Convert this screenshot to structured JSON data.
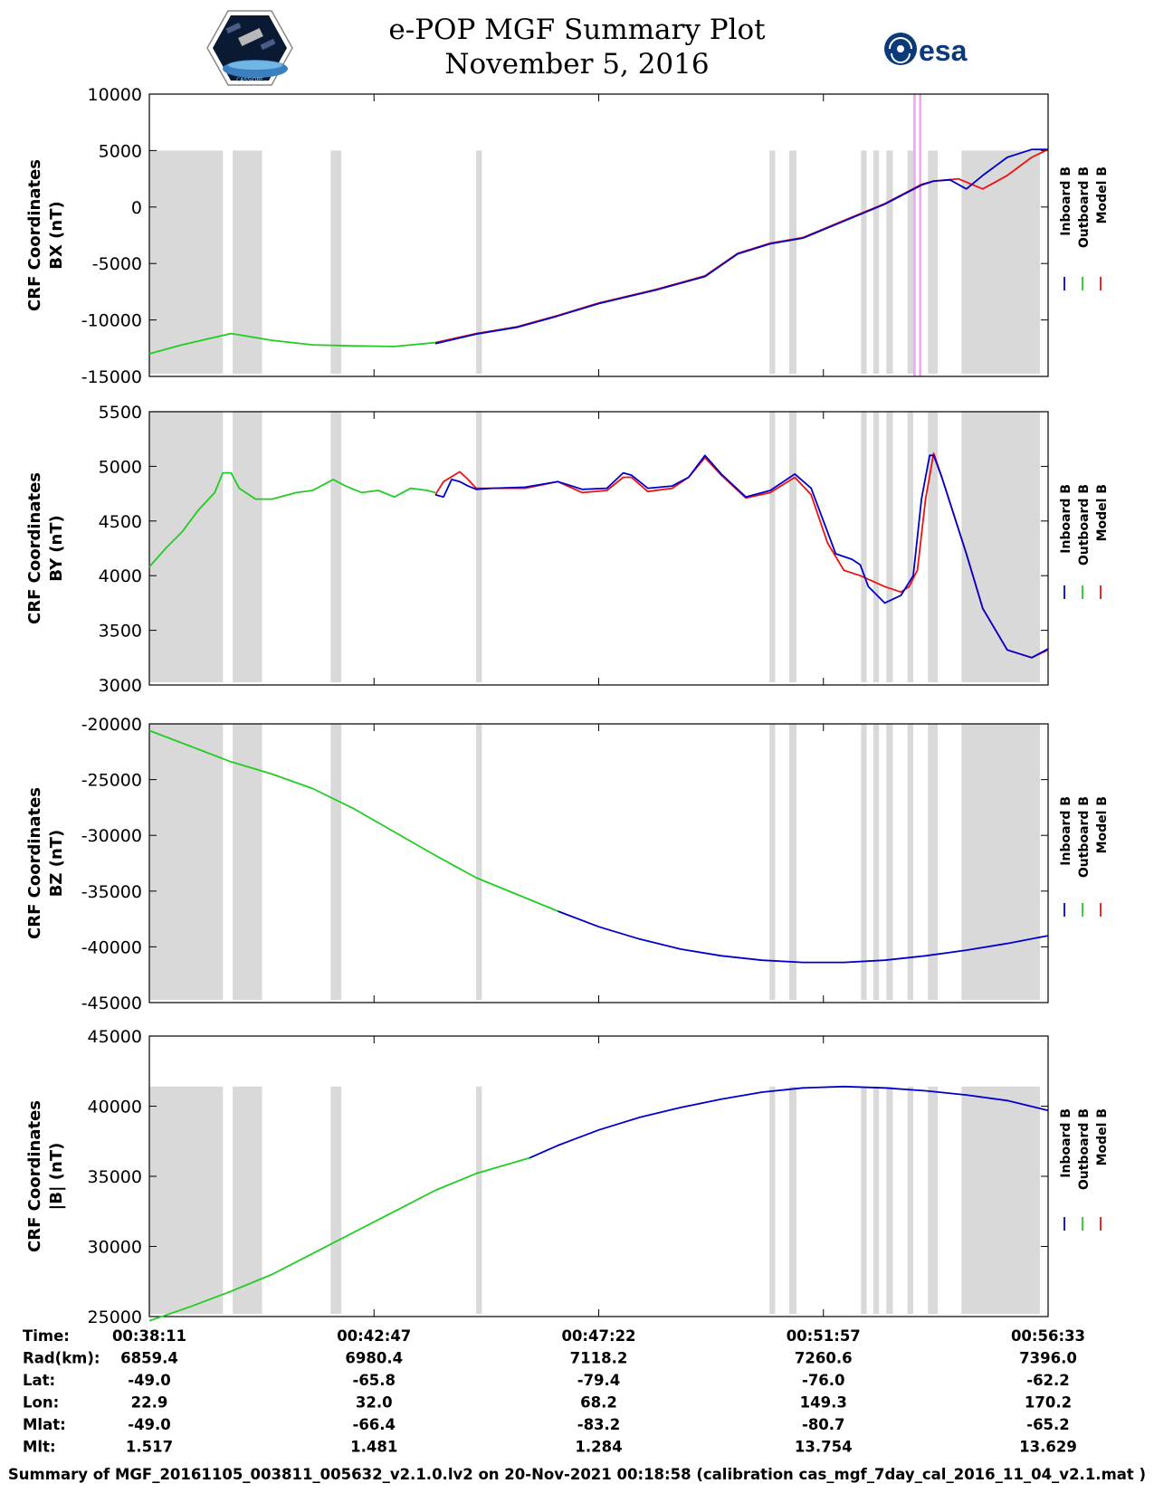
{
  "header": {
    "title": "e-POP MGF Summary Plot",
    "date": "November 5, 2016",
    "logo_left_label": "CASSIOPE",
    "logo_right_label": "esa"
  },
  "colors": {
    "inboard": "#0000cc",
    "outboard": "#22cc22",
    "model": "#ee1111",
    "shade": "#d9d9d9",
    "highlight": "#f0a8f0"
  },
  "chart_data": [
    {
      "type": "line",
      "ylabel_line1": "CRF Coordinates",
      "ylabel_line2": "BX (nT)",
      "ylim": [
        -15000,
        10000
      ],
      "yticks": [
        10000,
        5000,
        0,
        -5000,
        -10000,
        -15000
      ],
      "tick_labels": [
        "10000",
        "5000",
        "0",
        "-5000",
        "-10000",
        "-15000"
      ],
      "legend": [
        "Inboard B",
        "Outboard B",
        "Model B"
      ],
      "shade_top": 5000,
      "series": [
        {
          "name": "Outboard B",
          "x": [
            0,
            40,
            100,
            150,
            200,
            250,
            300,
            350
          ],
          "y": [
            -13000,
            -12200,
            -11200,
            -11800,
            -12200,
            -12300,
            -12350,
            -12000
          ]
        },
        {
          "name": "Model B",
          "x": [
            350,
            400,
            450,
            500,
            550,
            620,
            680,
            720,
            760,
            800,
            860,
            900,
            945,
            960,
            990,
            1020,
            1050,
            1080,
            1100
          ],
          "y": [
            -12000,
            -11200,
            -10600,
            -9600,
            -8500,
            -7300,
            -6100,
            -4100,
            -3200,
            -2700,
            -900,
            300,
            2000,
            2300,
            2500,
            1600,
            2800,
            4400,
            5100
          ]
        },
        {
          "name": "Inboard B",
          "x": [
            350,
            400,
            450,
            500,
            550,
            620,
            680,
            720,
            760,
            800,
            860,
            900,
            945,
            960,
            980,
            990,
            1000,
            1020,
            1050,
            1080,
            1100
          ],
          "y": [
            -12100,
            -11250,
            -10650,
            -9650,
            -8550,
            -7350,
            -6150,
            -4150,
            -3250,
            -2750,
            -950,
            250,
            1950,
            2300,
            2400,
            2000,
            1600,
            2800,
            4400,
            5100,
            5100
          ]
        }
      ],
      "highlights": [
        [
          935,
          938
        ],
        [
          942,
          945
        ]
      ]
    },
    {
      "type": "line",
      "ylabel_line1": "CRF Coordinates",
      "ylabel_line2": "BY (nT)",
      "ylim": [
        3000,
        5500
      ],
      "yticks": [
        5500,
        5000,
        4500,
        4000,
        3500,
        3000
      ],
      "tick_labels": [
        "5500",
        "5000",
        "4500",
        "4000",
        "3500",
        "3000"
      ],
      "legend": [
        "Inboard B",
        "Outboard B",
        "Model B"
      ],
      "shade_top": 5500,
      "series": [
        {
          "name": "Outboard B",
          "x": [
            0,
            20,
            40,
            60,
            80,
            90,
            100,
            110,
            130,
            150,
            180,
            200,
            225,
            240,
            260,
            280,
            300,
            320,
            340,
            350
          ],
          "y": [
            4080,
            4250,
            4400,
            4600,
            4760,
            4940,
            4940,
            4800,
            4700,
            4700,
            4760,
            4780,
            4880,
            4820,
            4760,
            4780,
            4720,
            4800,
            4780,
            4760
          ]
        },
        {
          "name": "Model B",
          "x": [
            350,
            360,
            380,
            390,
            400,
            420,
            460,
            500,
            530,
            560,
            580,
            590,
            610,
            640,
            660,
            680,
            700,
            730,
            760,
            790,
            810,
            830,
            850,
            870,
            900,
            920,
            930,
            940,
            950,
            960,
            970,
            1000,
            1020,
            1050,
            1080,
            1100
          ],
          "y": [
            4740,
            4860,
            4950,
            4880,
            4800,
            4800,
            4800,
            4860,
            4760,
            4780,
            4900,
            4900,
            4770,
            4800,
            4900,
            5080,
            4920,
            4710,
            4760,
            4900,
            4740,
            4300,
            4050,
            4000,
            3900,
            3850,
            3900,
            4050,
            4700,
            5120,
            4900,
            4200,
            3700,
            3320,
            3250,
            3320
          ]
        },
        {
          "name": "Inboard B",
          "x": [
            350,
            360,
            370,
            380,
            390,
            400,
            420,
            460,
            500,
            530,
            560,
            580,
            590,
            610,
            640,
            660,
            680,
            700,
            730,
            760,
            790,
            810,
            825,
            840,
            860,
            870,
            880,
            900,
            920,
            935,
            945,
            955,
            960,
            970,
            1000,
            1020,
            1050,
            1080,
            1100
          ],
          "y": [
            4740,
            4720,
            4880,
            4860,
            4820,
            4790,
            4800,
            4810,
            4860,
            4790,
            4800,
            4940,
            4920,
            4800,
            4820,
            4900,
            5100,
            4930,
            4720,
            4780,
            4930,
            4800,
            4500,
            4200,
            4150,
            4100,
            3900,
            3750,
            3820,
            4000,
            4700,
            5100,
            5100,
            4900,
            4200,
            3700,
            3320,
            3250,
            3330
          ]
        }
      ],
      "highlights": []
    },
    {
      "type": "line",
      "ylabel_line1": "CRF Coordinates",
      "ylabel_line2": "BZ (nT)",
      "ylim": [
        -45000,
        -20000
      ],
      "yticks": [
        -20000,
        -25000,
        -30000,
        -35000,
        -40000,
        -45000
      ],
      "tick_labels": [
        "-20000",
        "-25000",
        "-30000",
        "-35000",
        "-40000",
        "-45000"
      ],
      "legend": [
        "Inboard B",
        "Outboard B",
        "Model B"
      ],
      "shade_top": -20000,
      "series": [
        {
          "name": "Outboard B",
          "x": [
            0,
            50,
            100,
            150,
            200,
            250,
            300,
            350,
            400,
            500
          ],
          "y": [
            -20600,
            -22000,
            -23400,
            -24500,
            -25800,
            -27600,
            -29700,
            -31800,
            -33800,
            -36800
          ]
        },
        {
          "name": "Inboard B",
          "x": [
            500,
            550,
            600,
            650,
            700,
            750,
            800,
            850,
            900,
            950,
            1000,
            1050,
            1100
          ],
          "y": [
            -36800,
            -38200,
            -39300,
            -40200,
            -40800,
            -41200,
            -41400,
            -41400,
            -41200,
            -40800,
            -40300,
            -39700,
            -39000
          ]
        }
      ],
      "highlights": []
    },
    {
      "type": "line",
      "ylabel_line1": "CRF Coordinates",
      "ylabel_line2": "|B| (nT)",
      "ylim": [
        25000,
        45000
      ],
      "yticks": [
        45000,
        40000,
        35000,
        30000,
        25000
      ],
      "tick_labels": [
        "45000",
        "40000",
        "35000",
        "30000",
        "25000"
      ],
      "legend": [
        "Inboard B",
        "Outboard B",
        "Model B"
      ],
      "shade_top": 41400,
      "series": [
        {
          "name": "Outboard B",
          "x": [
            0,
            50,
            100,
            150,
            200,
            250,
            300,
            350,
            400,
            465
          ],
          "y": [
            24700,
            25700,
            26800,
            28000,
            29500,
            31000,
            32500,
            34000,
            35200,
            36300
          ]
        },
        {
          "name": "Inboard B",
          "x": [
            465,
            500,
            550,
            600,
            650,
            700,
            750,
            800,
            850,
            900,
            950,
            1000,
            1050,
            1100
          ],
          "y": [
            36300,
            37200,
            38300,
            39200,
            39900,
            40500,
            41000,
            41300,
            41400,
            41300,
            41100,
            40800,
            40400,
            39700
          ]
        }
      ],
      "highlights": []
    }
  ],
  "shaded_intervals": [
    [
      0,
      90
    ],
    [
      102,
      138
    ],
    [
      222,
      235
    ],
    [
      400,
      407
    ],
    [
      759,
      766
    ],
    [
      783,
      792
    ],
    [
      871,
      878
    ],
    [
      886,
      893
    ],
    [
      902,
      910
    ],
    [
      928,
      935
    ],
    [
      953,
      965
    ],
    [
      994,
      1090
    ]
  ],
  "x_ticks": [
    {
      "time": "00:38:11",
      "rad": "6859.4",
      "lat": "-49.0",
      "lon": "22.9",
      "mlat": "-49.0",
      "mlt": "1.517"
    },
    {
      "time": "00:42:47",
      "rad": "6980.4",
      "lat": "-65.8",
      "lon": "32.0",
      "mlat": "-66.4",
      "mlt": "1.481"
    },
    {
      "time": "00:47:22",
      "rad": "7118.2",
      "lat": "-79.4",
      "lon": "68.2",
      "mlat": "-83.2",
      "mlt": "1.284"
    },
    {
      "time": "00:51:57",
      "rad": "7260.6",
      "lat": "-76.0",
      "lon": "149.3",
      "mlat": "-80.7",
      "mlt": "13.754"
    },
    {
      "time": "00:56:33",
      "rad": "7396.0",
      "lat": "-62.2",
      "lon": "170.2",
      "mlat": "-65.2",
      "mlt": "13.629"
    }
  ],
  "ephem_labels": {
    "time": "Time:",
    "rad": "Rad(km):",
    "lat": "Lat:",
    "lon": "Lon:",
    "mlat": "Mlat:",
    "mlt": "Mlt:"
  },
  "footer": "Summary of MGF_20161105_003811_005632_v2.1.0.lv2 on 20-Nov-2021 00:18:58 (calibration cas_mgf_7day_cal_2016_11_04_v2.1.mat )"
}
